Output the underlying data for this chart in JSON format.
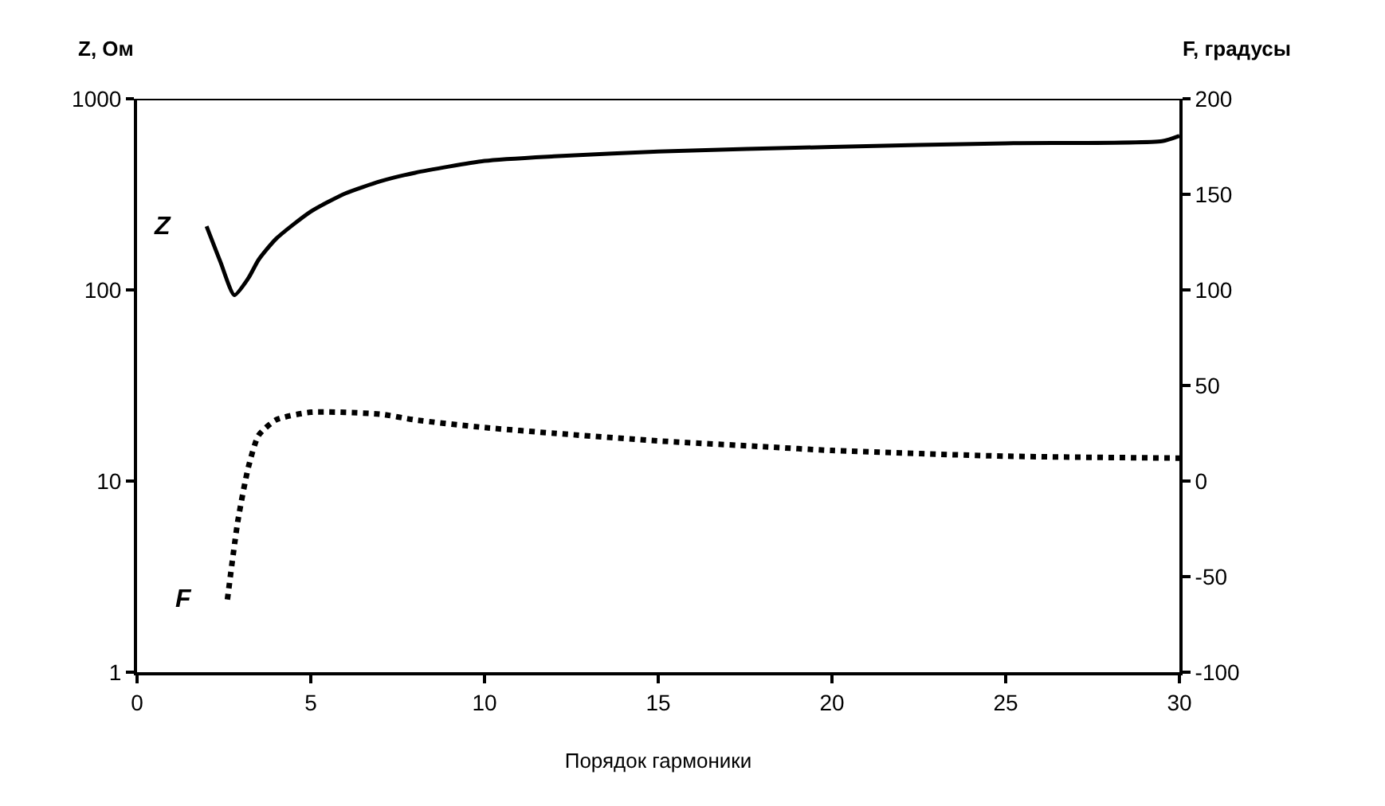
{
  "chart_data": {
    "type": "line",
    "xlabel": "Порядок гармоники",
    "ylabel": "Z, Ом",
    "y2label": "F, градусы",
    "xlim": [
      0,
      30
    ],
    "xticks": [
      0,
      5,
      10,
      15,
      20,
      25,
      30
    ],
    "ylim": [
      1,
      1000
    ],
    "yticks": [
      1,
      10,
      100,
      1000
    ],
    "log": "y",
    "y2lim": [
      -100,
      200
    ],
    "y2ticks": [
      -100,
      -50,
      0,
      50,
      100,
      150,
      200
    ],
    "legend": false,
    "marker": "none",
    "ref_lines": [
      {
        "axis": "y",
        "value": 1000,
        "color": "#000000"
      }
    ],
    "annotations": [
      "Z",
      "F"
    ],
    "series": [
      {
        "color": "#000000",
        "line_style": "solid",
        "x": [
          2,
          2.4,
          2.8,
          3.2,
          3.5,
          4,
          5,
          6,
          7,
          8,
          10,
          12,
          15,
          20,
          25,
          29.5,
          30
        ],
        "values": [
          215,
          140,
          94,
          115,
          144,
          185,
          257,
          320,
          370,
          410,
          473,
          500,
          530,
          560,
          585,
          600,
          640
        ]
      },
      {
        "color": "#000000",
        "line_style": "dotted",
        "axis": "y2",
        "x": [
          2.6,
          2.9,
          3.2,
          3.5,
          4,
          5,
          7,
          8,
          10,
          12,
          15,
          18,
          20,
          25,
          30
        ],
        "values": [
          -62,
          -21,
          7,
          24,
          32,
          36,
          35,
          32,
          28,
          25,
          21,
          18,
          16,
          13,
          12
        ]
      }
    ]
  }
}
